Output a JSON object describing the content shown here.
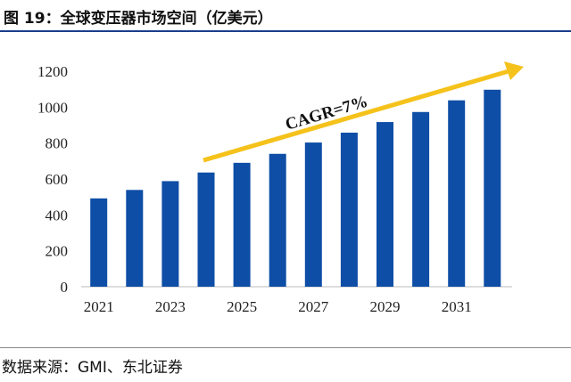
{
  "title": "图 19：全球变压器市场空间（亿美元）",
  "source": "数据来源：GMI、东北证券",
  "chart_data": {
    "type": "bar",
    "categories": [
      "2021",
      "2022",
      "2023",
      "2024",
      "2025",
      "2026",
      "2027",
      "2028",
      "2029",
      "2030",
      "2031",
      "2032"
    ],
    "x_tick_labels": [
      "2021",
      "2023",
      "2025",
      "2027",
      "2029",
      "2031"
    ],
    "values": [
      492,
      539,
      588,
      636,
      690,
      740,
      803,
      858,
      917,
      973,
      1038,
      1097
    ],
    "ylim": [
      0,
      1200
    ],
    "yticks": [
      0,
      200,
      400,
      600,
      800,
      1000,
      1200
    ],
    "grid": false,
    "annotation": "CAGR=7%",
    "colors": {
      "bar": "#0e4ea6",
      "arrow": "#f5c21b"
    }
  }
}
